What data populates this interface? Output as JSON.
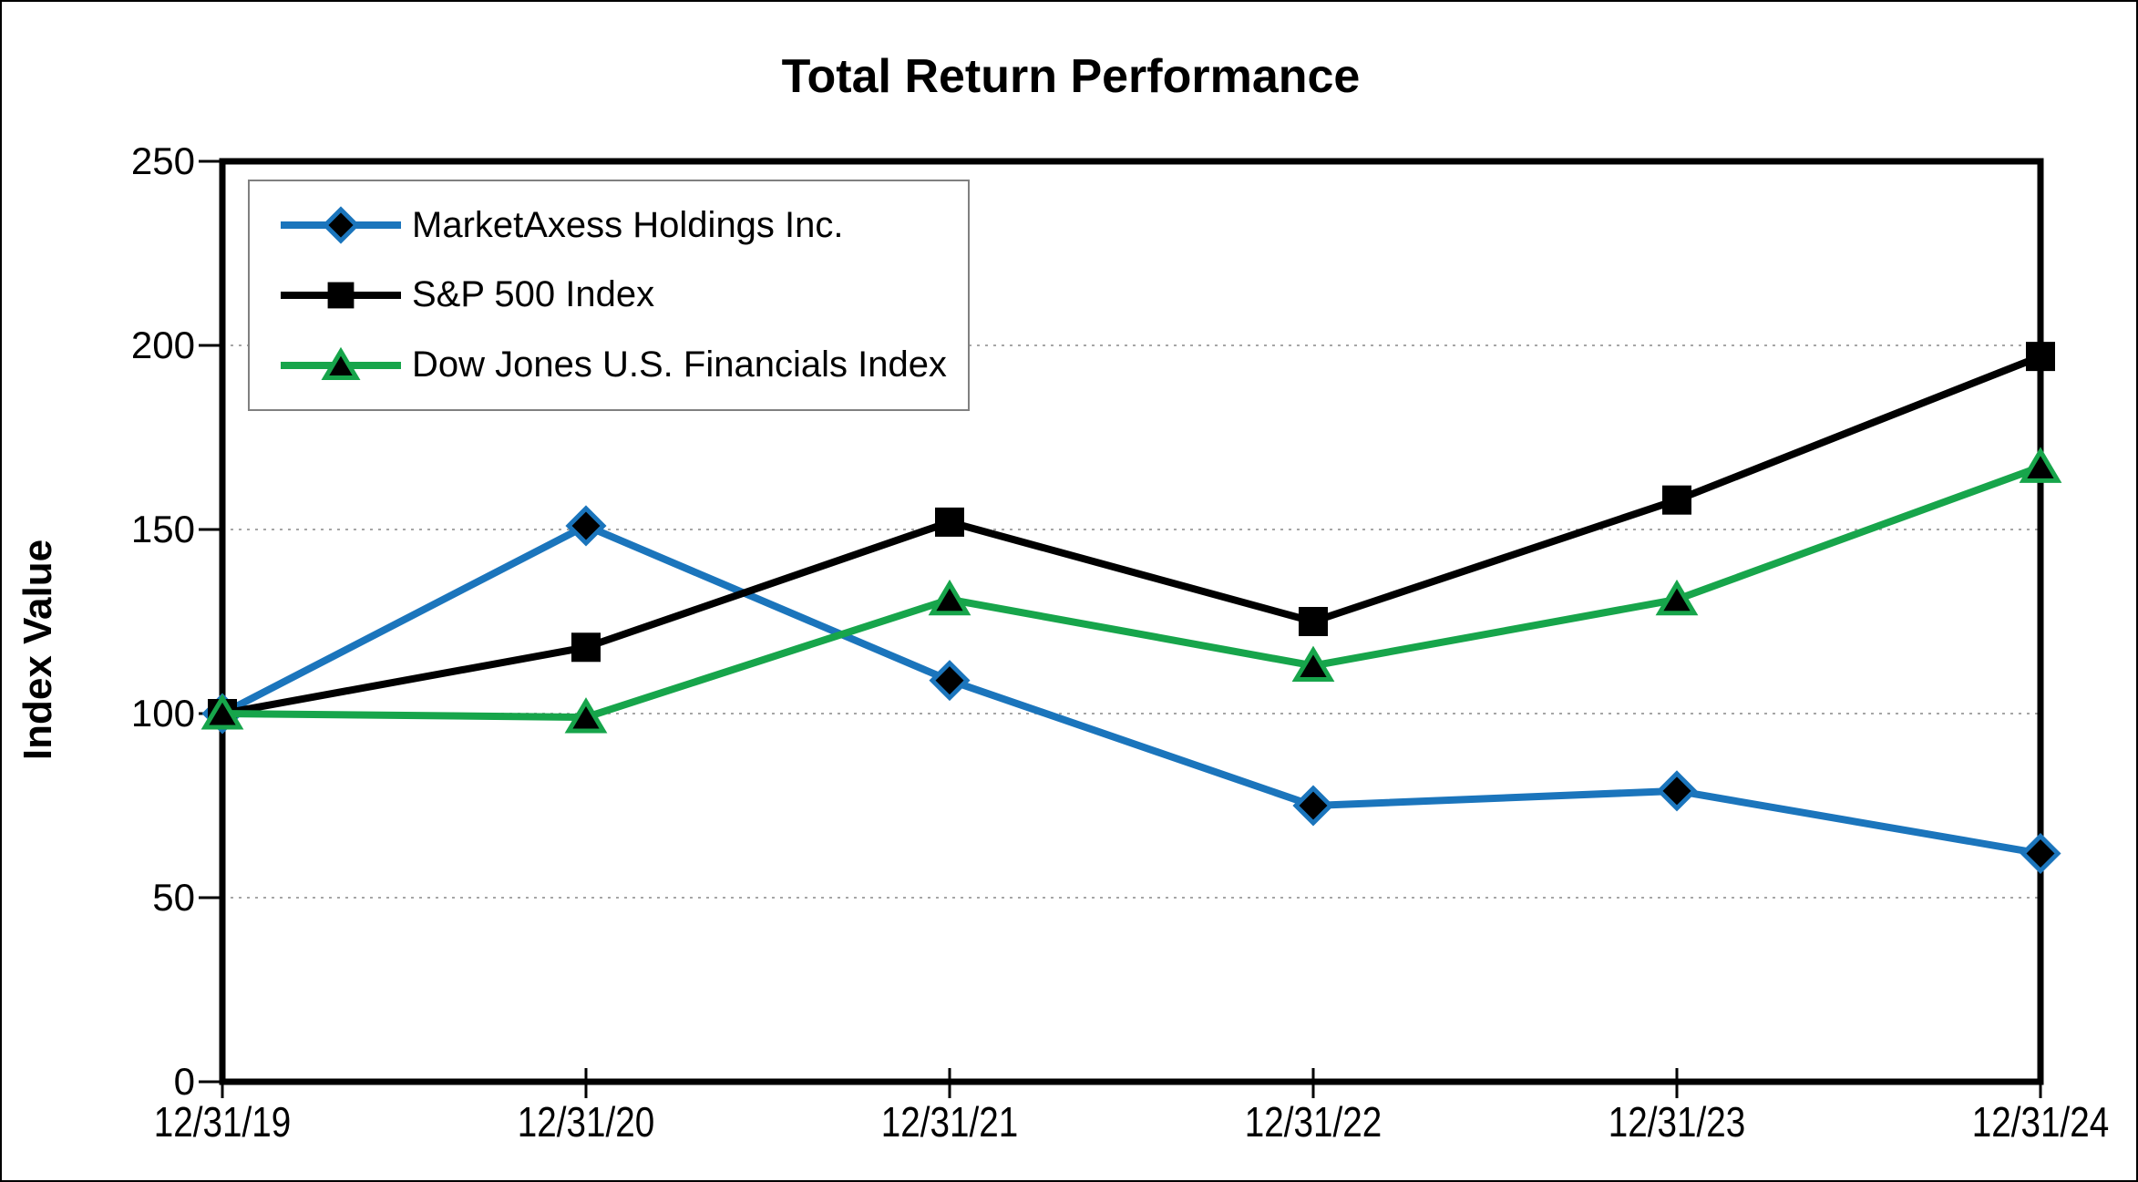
{
  "chart_data": {
    "type": "line",
    "title": "Total Return Performance",
    "xlabel": "",
    "ylabel": "Index Value",
    "ylim": [
      0,
      250
    ],
    "y_ticks": [
      0,
      50,
      100,
      150,
      200,
      250
    ],
    "grid": "horizontal dotted gridlines at 50, 100, 150, 200",
    "legend_position": "top-left inside plot area",
    "categories": [
      "12/31/19",
      "12/31/20",
      "12/31/21",
      "12/31/22",
      "12/31/23",
      "12/31/24"
    ],
    "series": [
      {
        "name": "MarketAxess Holdings Inc.",
        "marker": "diamond",
        "color": "#1B75BC",
        "values": [
          100,
          151,
          109,
          75,
          79,
          62
        ]
      },
      {
        "name": "S&P 500 Index",
        "marker": "square",
        "color": "#000000",
        "values": [
          100,
          118,
          152,
          125,
          158,
          197
        ]
      },
      {
        "name": "Dow Jones U.S. Financials Index",
        "marker": "triangle",
        "color": "#17A54B",
        "values": [
          100,
          99,
          131,
          113,
          131,
          167
        ]
      }
    ]
  },
  "colors": {
    "plot_border": "#000000",
    "gridline": "#A6A6A6",
    "legend_border": "#808080",
    "marker_fill": "#000000",
    "background": "#FFFFFF"
  }
}
